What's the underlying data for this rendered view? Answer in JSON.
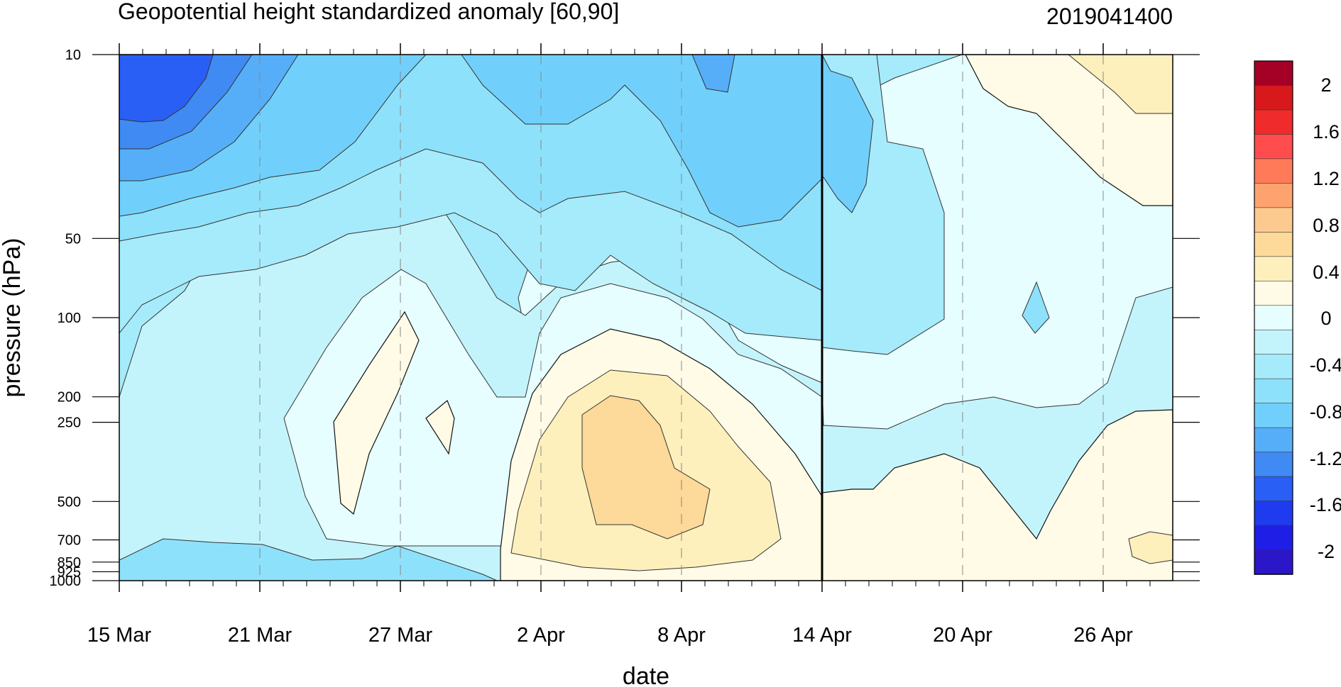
{
  "chart_data": {
    "type": "heatmap",
    "subtype": "filled-contour",
    "title": "Geopotential height standardized anomaly [60,90]",
    "timestamp": "2019041400",
    "xlabel": "date",
    "ylabel": "pressure (hPa)",
    "x_ticks": [
      "15 Mar",
      "21 Mar",
      "27 Mar",
      "2 Apr",
      "8 Apr",
      "14 Apr",
      "20 Apr",
      "26 Apr"
    ],
    "y_ticks": [
      "10",
      "50",
      "100",
      "200",
      "250",
      "500",
      "700",
      "850",
      "925",
      "1000"
    ],
    "y_scale": "log",
    "current_date_marker": "14 Apr",
    "colorbar": {
      "labels": [
        "2",
        "1.6",
        "1.2",
        "0.8",
        "0.4",
        "0",
        "-0.4",
        "-0.8",
        "-1.2",
        "-1.6",
        "-2"
      ],
      "colors": [
        "#a50026",
        "#d7191c",
        "#ef2b2b",
        "#ff4d4d",
        "#ff7a59",
        "#fea36f",
        "#fcc98f",
        "#fdd99a",
        "#fef0bc",
        "#fffbe6",
        "#e6feff",
        "#c4f4fb",
        "#a6ebfb",
        "#8ee1fb",
        "#71d0fb",
        "#56aef8",
        "#3f8af3",
        "#2a5ff5",
        "#1e3bf0",
        "#1f1ee6",
        "#2b16c8"
      ]
    },
    "regions": [
      {
        "level": -2.0,
        "desc": "deep blue core near 10 hPa, 15-17 Mar"
      },
      {
        "level": -1.6,
        "desc": "blue upper stratosphere 15-19 Mar"
      },
      {
        "level": -1.2,
        "desc": "upper levels 15-22 Mar and near 10 hPa 10 Apr"
      },
      {
        "level": -0.8,
        "desc": "stratosphere 15 Mar - 14 Apr"
      },
      {
        "level": 0.4,
        "desc": "mid troposphere max near 500 hPa 4-8 Apr"
      },
      {
        "level": 0.6,
        "desc": "positive anomaly 10 hPa late April"
      }
    ]
  }
}
